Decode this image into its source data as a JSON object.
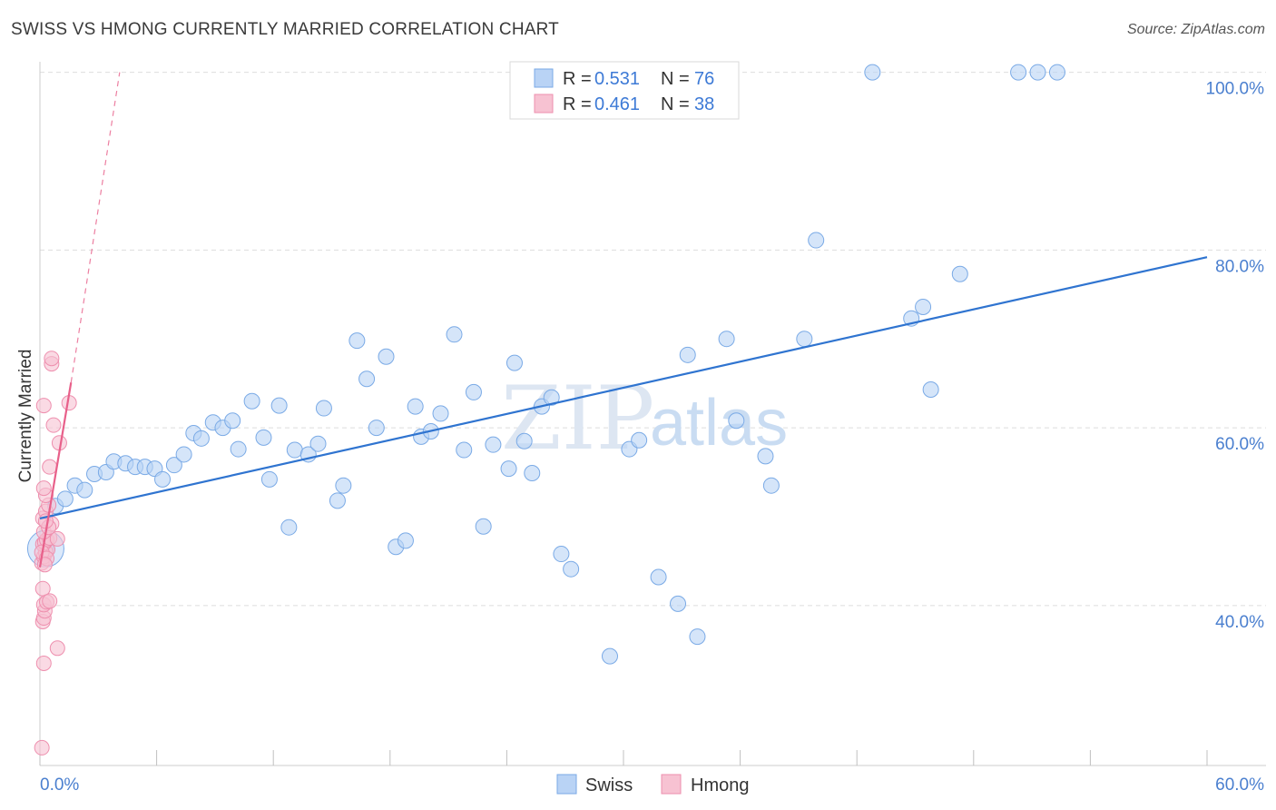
{
  "title": "SWISS VS HMONG CURRENTLY MARRIED CORRELATION CHART",
  "source": "Source: ZipAtlas.com",
  "watermark": {
    "zip": "ZIP",
    "atlas": "atlas"
  },
  "colors": {
    "swiss_fill": "#b9d3f5",
    "swiss_stroke": "#7aaae6",
    "swiss_line": "#2f74d0",
    "hmong_fill": "#f7c2d2",
    "hmong_stroke": "#ee8fae",
    "hmong_line": "#e8608a",
    "axis_text": "#4a7fcf",
    "grid": "#dddddd"
  },
  "legend": {
    "rows": [
      {
        "series": "swiss",
        "r_label": "R = ",
        "r_value": "0.531",
        "n_label": "N = ",
        "n_value": "76"
      },
      {
        "series": "hmong",
        "r_label": "R = ",
        "r_value": "0.461",
        "n_label": "N = ",
        "n_value": "38"
      }
    ]
  },
  "chart_data": {
    "type": "scatter",
    "title": "SWISS VS HMONG CURRENTLY MARRIED CORRELATION CHART",
    "xlabel": "",
    "ylabel": "Currently Married",
    "xlim": [
      0,
      60
    ],
    "ylim": [
      22,
      102
    ],
    "x_tick_labels": [
      "0.0%",
      "60.0%"
    ],
    "y_ticks": [
      40,
      60,
      80,
      100
    ],
    "y_tick_labels": [
      "40.0%",
      "60.0%",
      "80.0%",
      "100.0%"
    ],
    "grid": true,
    "series": [
      {
        "name": "Swiss",
        "color": "#2f74d0",
        "trend": {
          "x": [
            0,
            60
          ],
          "y": [
            49.8,
            79.2
          ]
        },
        "points": [
          [
            0.3,
            46.4
          ],
          [
            0.8,
            51.2
          ],
          [
            1.3,
            52.0
          ],
          [
            1.8,
            53.5
          ],
          [
            2.3,
            53.0
          ],
          [
            2.8,
            54.8
          ],
          [
            3.4,
            55.0
          ],
          [
            3.8,
            56.2
          ],
          [
            4.4,
            56.0
          ],
          [
            4.9,
            55.6
          ],
          [
            5.4,
            55.6
          ],
          [
            5.9,
            55.4
          ],
          [
            6.3,
            54.2
          ],
          [
            6.9,
            55.8
          ],
          [
            7.4,
            57.0
          ],
          [
            7.9,
            59.4
          ],
          [
            8.3,
            58.8
          ],
          [
            8.9,
            60.6
          ],
          [
            9.4,
            60.0
          ],
          [
            9.9,
            60.8
          ],
          [
            10.2,
            57.6
          ],
          [
            10.9,
            63.0
          ],
          [
            11.5,
            58.9
          ],
          [
            11.8,
            54.2
          ],
          [
            12.3,
            62.5
          ],
          [
            12.8,
            48.8
          ],
          [
            13.1,
            57.5
          ],
          [
            13.8,
            57.0
          ],
          [
            14.3,
            58.2
          ],
          [
            14.6,
            62.2
          ],
          [
            15.3,
            51.8
          ],
          [
            15.6,
            53.5
          ],
          [
            16.3,
            69.8
          ],
          [
            16.8,
            65.5
          ],
          [
            17.3,
            60.0
          ],
          [
            17.8,
            68.0
          ],
          [
            18.3,
            46.6
          ],
          [
            18.8,
            47.3
          ],
          [
            19.3,
            62.4
          ],
          [
            19.6,
            59.0
          ],
          [
            20.1,
            59.6
          ],
          [
            20.6,
            61.6
          ],
          [
            21.3,
            70.5
          ],
          [
            21.8,
            57.5
          ],
          [
            22.3,
            64.0
          ],
          [
            22.8,
            48.9
          ],
          [
            23.3,
            58.1
          ],
          [
            24.1,
            55.4
          ],
          [
            24.4,
            67.3
          ],
          [
            24.9,
            58.5
          ],
          [
            25.3,
            54.9
          ],
          [
            25.8,
            62.4
          ],
          [
            26.3,
            63.4
          ],
          [
            26.8,
            45.8
          ],
          [
            27.3,
            44.1
          ],
          [
            29.3,
            34.3
          ],
          [
            30.3,
            57.6
          ],
          [
            30.8,
            58.6
          ],
          [
            31.8,
            43.2
          ],
          [
            32.8,
            40.2
          ],
          [
            33.3,
            68.2
          ],
          [
            33.8,
            36.5
          ],
          [
            35.3,
            70.0
          ],
          [
            35.8,
            60.8
          ],
          [
            37.3,
            56.8
          ],
          [
            37.6,
            53.5
          ],
          [
            39.3,
            70.0
          ],
          [
            39.9,
            81.1
          ],
          [
            42.8,
            100.0
          ],
          [
            44.8,
            72.3
          ],
          [
            45.4,
            73.6
          ],
          [
            45.8,
            64.3
          ],
          [
            47.3,
            77.3
          ],
          [
            50.3,
            100.0
          ],
          [
            51.3,
            100.0
          ],
          [
            52.3,
            100.0
          ]
        ]
      },
      {
        "name": "Hmong",
        "color": "#e8608a",
        "trend": {
          "x": [
            0,
            1.6
          ],
          "y": [
            44.3,
            65.1
          ]
        },
        "trend_extension": {
          "x": [
            1.6,
            4.1
          ],
          "y": [
            65.1,
            100.0
          ]
        },
        "points": [
          [
            0.1,
            24.0
          ],
          [
            0.2,
            33.5
          ],
          [
            0.15,
            38.2
          ],
          [
            0.2,
            38.6
          ],
          [
            0.25,
            39.4
          ],
          [
            0.2,
            40.1
          ],
          [
            0.35,
            40.4
          ],
          [
            0.15,
            41.9
          ],
          [
            0.5,
            40.5
          ],
          [
            0.9,
            35.2
          ],
          [
            0.1,
            44.8
          ],
          [
            0.2,
            45.5
          ],
          [
            0.3,
            46.0
          ],
          [
            0.4,
            46.3
          ],
          [
            0.15,
            46.9
          ],
          [
            0.25,
            47.1
          ],
          [
            0.35,
            47.4
          ],
          [
            0.5,
            47.6
          ],
          [
            0.9,
            47.5
          ],
          [
            0.2,
            48.3
          ],
          [
            0.6,
            49.2
          ],
          [
            0.15,
            49.8
          ],
          [
            0.3,
            50.6
          ],
          [
            0.45,
            51.3
          ],
          [
            0.3,
            52.4
          ],
          [
            0.2,
            53.2
          ],
          [
            0.5,
            55.6
          ],
          [
            1.0,
            58.3
          ],
          [
            0.7,
            60.3
          ],
          [
            0.2,
            62.5
          ],
          [
            1.5,
            62.8
          ],
          [
            0.6,
            67.2
          ],
          [
            0.6,
            67.8
          ],
          [
            0.1,
            46.0
          ],
          [
            0.35,
            45.3
          ],
          [
            0.25,
            44.6
          ],
          [
            0.45,
            48.8
          ],
          [
            0.3,
            49.5
          ]
        ]
      }
    ],
    "legend_entries": [
      "Swiss",
      "Hmong"
    ]
  }
}
